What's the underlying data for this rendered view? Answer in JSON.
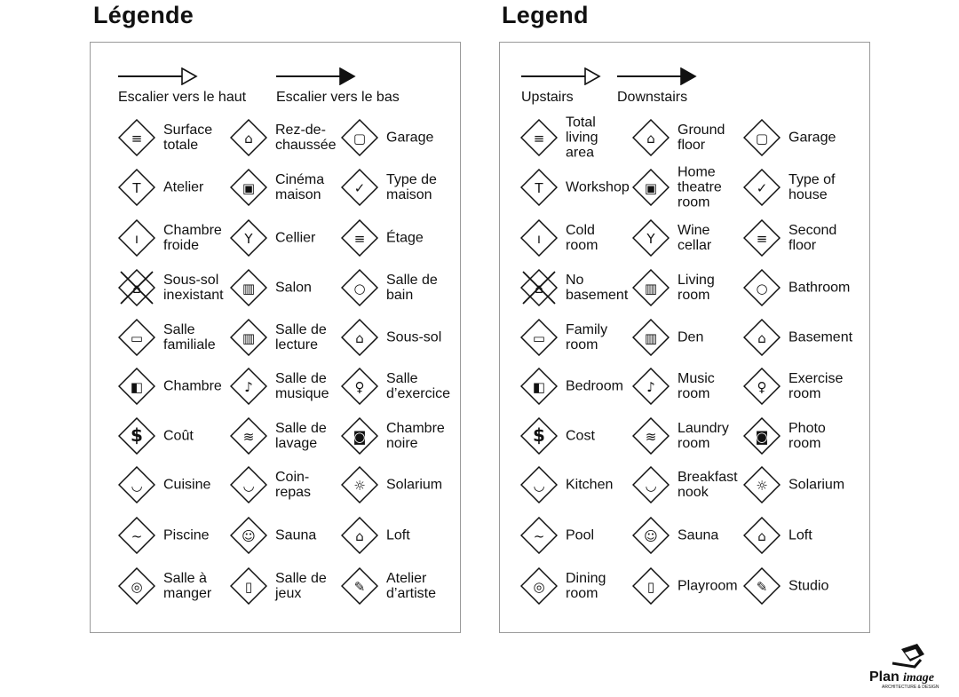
{
  "icons": [
    "total-area-icon",
    "ground-floor-icon",
    "garage-icon",
    "workshop-hammer-icon",
    "home-theatre-icon",
    "type-of-house-icon",
    "cold-room-thermometer-icon",
    "wine-cellar-icon",
    "second-floor-icon",
    "no-basement-icon",
    "living-room-icon",
    "bathroom-icon",
    "family-room-tv-icon",
    "den-book-icon",
    "basement-icon",
    "bedroom-icon",
    "music-note-icon",
    "exercise-icon",
    "cost-dollar-icon",
    "laundry-icon",
    "photo-camera-icon",
    "kitchen-pot-icon",
    "breakfast-cup-icon",
    "solarium-sun-icon",
    "pool-icon",
    "sauna-icon",
    "loft-icon",
    "dining-plate-icon",
    "playroom-icon",
    "studio-palette-icon"
  ],
  "logo_text": "Planimage ARCHITECTURE & DESIGN",
  "french": {
    "title": "Légende",
    "stairs_up": "Escalier vers le haut",
    "stairs_down": "Escalier vers le bas",
    "items": [
      "Surface\ntotale",
      "Rez-de-\nchaussée",
      "Garage",
      "Atelier",
      "Cinéma\nmaison",
      "Type de\nmaison",
      "Chambre\nfroide",
      "Cellier",
      "Étage",
      "Sous-sol\ninexistant",
      "Salon",
      "Salle de\nbain",
      "Salle\nfamiliale",
      "Salle de\nlecture",
      "Sous-sol",
      "Chambre",
      "Salle de\nmusique",
      "Salle\nd’exercice",
      "Coût",
      "Salle de\nlavage",
      "Chambre\nnoire",
      "Cuisine",
      "Coin-\nrepas",
      "Solarium",
      "Piscine",
      "Sauna",
      "Loft",
      "Salle à\nmanger",
      "Salle de\njeux",
      "Atelier\nd’artiste"
    ]
  },
  "english": {
    "title": "Legend",
    "stairs_up": "Upstairs",
    "stairs_down": "Downstairs",
    "items": [
      "Total\nliving\narea",
      "Ground\nfloor",
      "Garage",
      "Workshop",
      "Home\ntheatre\nroom",
      "Type of\nhouse",
      "Cold\nroom",
      "Wine\ncellar",
      "Second\nfloor",
      "No\nbasement",
      "Living\nroom",
      "Bathroom",
      "Family\nroom",
      "Den",
      "Basement",
      "Bedroom",
      "Music\nroom",
      "Exercise\nroom",
      "Cost",
      "Laundry\nroom",
      "Photo\nroom",
      "Kitchen",
      "Breakfast\nnook",
      "Solarium",
      "Pool",
      "Sauna",
      "Loft",
      "Dining\nroom",
      "Playroom",
      "Studio"
    ]
  }
}
